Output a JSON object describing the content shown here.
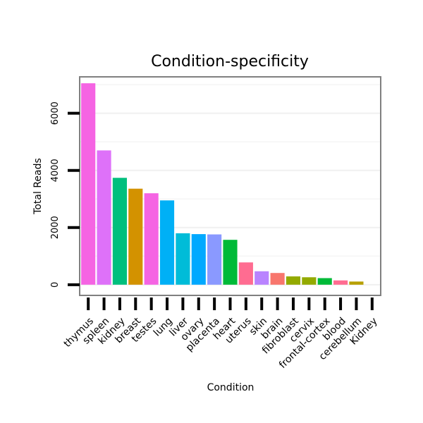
{
  "chart_data": {
    "type": "bar",
    "title": "Condition-specificity",
    "xlabel": "Condition",
    "ylabel": "Total Reads",
    "ylim": [
      -350,
      7250
    ],
    "yticks": [
      0,
      2000,
      4000,
      6000
    ],
    "ytick_labels": [
      "0",
      "2000",
      "4000",
      "6000"
    ],
    "grid": true,
    "categories": [
      "thymus",
      "spleen",
      "kidney",
      "breast",
      "testes",
      "lung",
      "liver",
      "ovary",
      "placenta",
      "heart",
      "uterus",
      "skin",
      "brain",
      "fibroblast",
      "cervix",
      "frontal-cortex",
      "blood",
      "cerebellum",
      "Kidney"
    ],
    "values": [
      7050,
      4700,
      3740,
      3360,
      3200,
      2950,
      1800,
      1770,
      1760,
      1570,
      780,
      470,
      410,
      290,
      260,
      230,
      150,
      110,
      0
    ],
    "colors": [
      "#F564E3",
      "#DE71F9",
      "#00BF7D",
      "#D39200",
      "#F564E3",
      "#00B0F6",
      "#00BCD8",
      "#00A9FF",
      "#8A99FF",
      "#00BA38",
      "#FF6C91",
      "#B983FF",
      "#F8766D",
      "#93AA00",
      "#93AA00",
      "#00BA38",
      "#FF6C91",
      "#B79F00",
      "#B79F00"
    ]
  }
}
